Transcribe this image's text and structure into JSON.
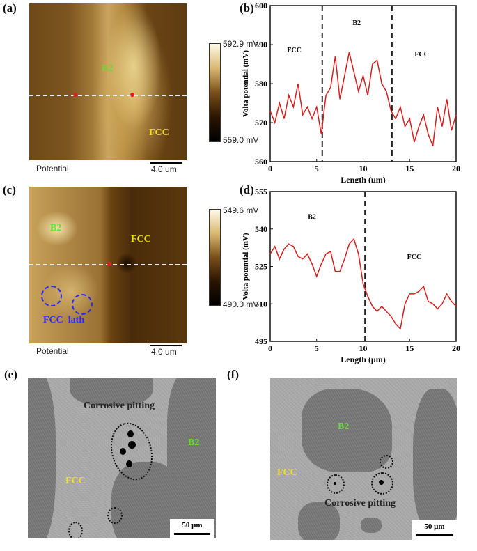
{
  "panels": {
    "a": {
      "label": "(a)",
      "colorbar_max": "592.9 mV",
      "colorbar_min": "559.0 mV",
      "potential": "Potential",
      "scale": "4.0 um",
      "phase_b2": "B2",
      "phase_fcc": "FCC"
    },
    "b": {
      "label": "(b)"
    },
    "c": {
      "label": "(c)",
      "colorbar_max": "549.6 mV",
      "colorbar_min": "490.0 mV",
      "potential": "Potential",
      "scale": "4.0 um",
      "phase_b2": "B2",
      "phase_fcc": "FCC",
      "fcc_lath": "FCC  lath"
    },
    "d": {
      "label": "(d)"
    },
    "e": {
      "label": "(e)",
      "pitting": "Corrosive pitting",
      "phase_b2": "B2",
      "phase_fcc": "FCC",
      "scale": "50 μm"
    },
    "f": {
      "label": "(f)",
      "pitting": "Corrosive pitting",
      "phase_b2": "B2",
      "phase_fcc": "FCC",
      "scale": "50 μm"
    }
  },
  "colors": {
    "line": "#d81e1e",
    "b2": "#66dd33",
    "fcc": "#f0e020",
    "lath": "#2a2aff"
  },
  "chart_data": [
    {
      "type": "line",
      "xlabel": "Length (μm)",
      "ylabel": "Volta potential (mV)",
      "xlim": [
        0,
        20
      ],
      "ylim": [
        560,
        600
      ],
      "xticks": [
        0,
        5,
        10,
        15,
        20
      ],
      "yticks": [
        560,
        570,
        580,
        590,
        600
      ],
      "vlines": [
        5.6,
        13.1
      ],
      "annotations": [
        {
          "text": "FCC",
          "x": 2.6,
          "y": 588
        },
        {
          "text": "B2",
          "x": 9.3,
          "y": 595
        },
        {
          "text": "FCC",
          "x": 16.3,
          "y": 587
        }
      ],
      "x": [
        0,
        0.5,
        1,
        1.5,
        2,
        2.5,
        3,
        3.5,
        4,
        4.5,
        5,
        5.5,
        6,
        6.5,
        7,
        7.5,
        8,
        8.5,
        9,
        9.5,
        10,
        10.5,
        11,
        11.5,
        12,
        12.5,
        13,
        13.5,
        14,
        14.5,
        15,
        15.5,
        16,
        16.5,
        17,
        17.5,
        18,
        18.5,
        19,
        19.5,
        20
      ],
      "y": [
        573,
        570,
        575,
        571,
        577,
        574,
        580,
        572,
        574,
        571,
        574,
        567,
        577,
        579,
        587,
        576,
        582,
        588,
        583,
        578,
        582,
        577,
        585,
        586,
        580,
        578,
        573,
        571,
        574,
        569,
        571,
        565,
        569,
        572,
        567,
        564,
        574,
        569,
        576,
        568,
        572
      ]
    },
    {
      "type": "line",
      "xlabel": "Length (μm)",
      "ylabel": "Volta potential (mV)",
      "xlim": [
        0,
        20
      ],
      "ylim": [
        495,
        555
      ],
      "xticks": [
        0,
        5,
        10,
        15,
        20
      ],
      "yticks": [
        495,
        510,
        525,
        540,
        555
      ],
      "vlines": [
        10.2
      ],
      "annotations": [
        {
          "text": "B2",
          "x": 4.5,
          "y": 544
        },
        {
          "text": "FCC",
          "x": 15.5,
          "y": 528
        }
      ],
      "x": [
        0,
        0.5,
        1,
        1.5,
        2,
        2.5,
        3,
        3.5,
        4,
        4.5,
        5,
        5.5,
        6,
        6.5,
        7,
        7.5,
        8,
        8.5,
        9,
        9.5,
        10,
        10.5,
        11,
        11.5,
        12,
        12.5,
        13,
        13.5,
        14,
        14.5,
        15,
        15.5,
        16,
        16.5,
        17,
        17.5,
        18,
        18.5,
        19,
        19.5,
        20
      ],
      "y": [
        530,
        533,
        528,
        532,
        534,
        533,
        529,
        528,
        530,
        526,
        521,
        526,
        530,
        531,
        523,
        523,
        528,
        534,
        536,
        530,
        518,
        513,
        509,
        507,
        509,
        507,
        505,
        502,
        500,
        510,
        514,
        514,
        515,
        517,
        511,
        510,
        508,
        510,
        514,
        511,
        509
      ]
    }
  ]
}
